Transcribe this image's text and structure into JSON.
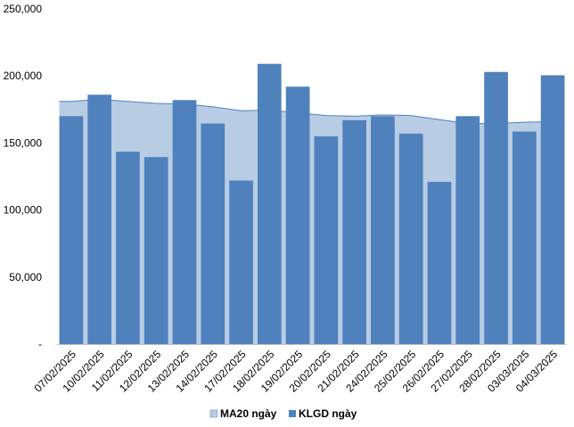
{
  "chart_data": {
    "type": "bar",
    "categories": [
      "07/02/2025",
      "10/02/2025",
      "11/02/2025",
      "12/02/2025",
      "13/02/2025",
      "14/02/2025",
      "17/02/2025",
      "18/02/2025",
      "19/02/2025",
      "20/02/2025",
      "21/02/2025",
      "24/02/2025",
      "25/02/2025",
      "26/02/2025",
      "27/02/2025",
      "28/02/2025",
      "03/03/2025",
      "04/03/2025"
    ],
    "ylim": [
      0,
      250000
    ],
    "y_ticks": [
      {
        "value": 0,
        "label": "-"
      },
      {
        "value": 50000,
        "label": "50,000"
      },
      {
        "value": 100000,
        "label": "100,000"
      },
      {
        "value": 150000,
        "label": "150,000"
      },
      {
        "value": 200000,
        "label": "200,000"
      },
      {
        "value": 250000,
        "label": "250,000"
      }
    ],
    "grid": false,
    "legend_position": "bottom",
    "series": [
      {
        "name": "MA20 ngày",
        "kind": "area",
        "color": "#b8cce4",
        "stroke": "#4f81bd",
        "values": [
          181000,
          182500,
          181000,
          179500,
          179000,
          177000,
          174000,
          174500,
          172500,
          170500,
          170000,
          171000,
          170500,
          167500,
          164500,
          164500,
          165500,
          166000
        ]
      },
      {
        "name": "KLGD ngày",
        "kind": "bar",
        "color": "#4f81bd",
        "values": [
          170000,
          186000,
          143500,
          139500,
          182000,
          164500,
          122000,
          209000,
          192000,
          155000,
          167000,
          170000,
          157000,
          121000,
          170000,
          203000,
          158500,
          200500
        ]
      }
    ]
  }
}
